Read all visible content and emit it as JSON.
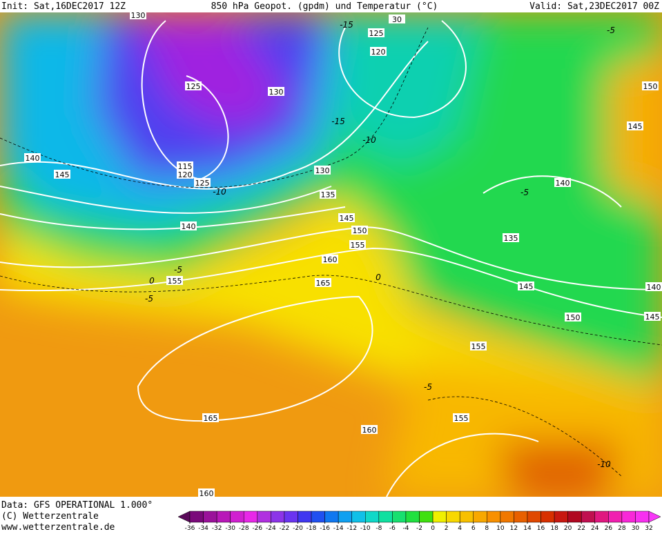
{
  "header": {
    "init": "Init: Sat,16DEC2017 12Z",
    "title": "850 hPa Geopot. (gpdm) und Temperatur (°C)",
    "valid": "Valid: Sat,23DEC2017 00Z"
  },
  "footer": {
    "data": "Data: GFS OPERATIONAL 1.000°",
    "copyright": "(C) Wetterzentrale",
    "url": "www.wetterzentrale.de"
  },
  "geopotential_labels": [
    "130",
    "30",
    "125",
    "120",
    "125",
    "130",
    "150",
    "145",
    "140",
    "145",
    "115",
    "120",
    "125",
    "130",
    "135",
    "140",
    "145",
    "150",
    "140",
    "155",
    "135",
    "160",
    "165",
    "155",
    "145",
    "140",
    "150",
    "145",
    "155",
    "165",
    "155",
    "160",
    "160"
  ],
  "temperature_labels": [
    "-15",
    "-5",
    "-15",
    "-10",
    "-10",
    "-5",
    "-5",
    "0",
    "-5",
    "0",
    "-5",
    "-10"
  ],
  "colorbar": {
    "ticks": [
      -36,
      -34,
      -32,
      -30,
      -28,
      -26,
      -24,
      -22,
      -20,
      -18,
      -16,
      -14,
      -12,
      -10,
      -8,
      -6,
      -4,
      -2,
      0,
      2,
      4,
      6,
      8,
      10,
      12,
      14,
      16,
      18,
      20,
      22,
      24,
      26,
      28,
      30,
      32
    ],
    "colors": [
      "#5a0a5a",
      "#7a0a7a",
      "#9a129a",
      "#b818b8",
      "#d020d0",
      "#e828e8",
      "#b030e0",
      "#8c34e8",
      "#6a34f0",
      "#4038f0",
      "#2050f0",
      "#1078f0",
      "#10a0f0",
      "#10c0e8",
      "#10d8c8",
      "#10e0a0",
      "#18e070",
      "#20e040",
      "#40e010",
      "#f0f000",
      "#f8d800",
      "#f8c000",
      "#f8a800",
      "#f89000",
      "#f07800",
      "#e86000",
      "#e04800",
      "#d83000",
      "#c81810",
      "#b00820",
      "#c01050",
      "#e01880",
      "#f020b0",
      "#f828d8",
      "#f830f0",
      "#f838f8"
    ]
  }
}
